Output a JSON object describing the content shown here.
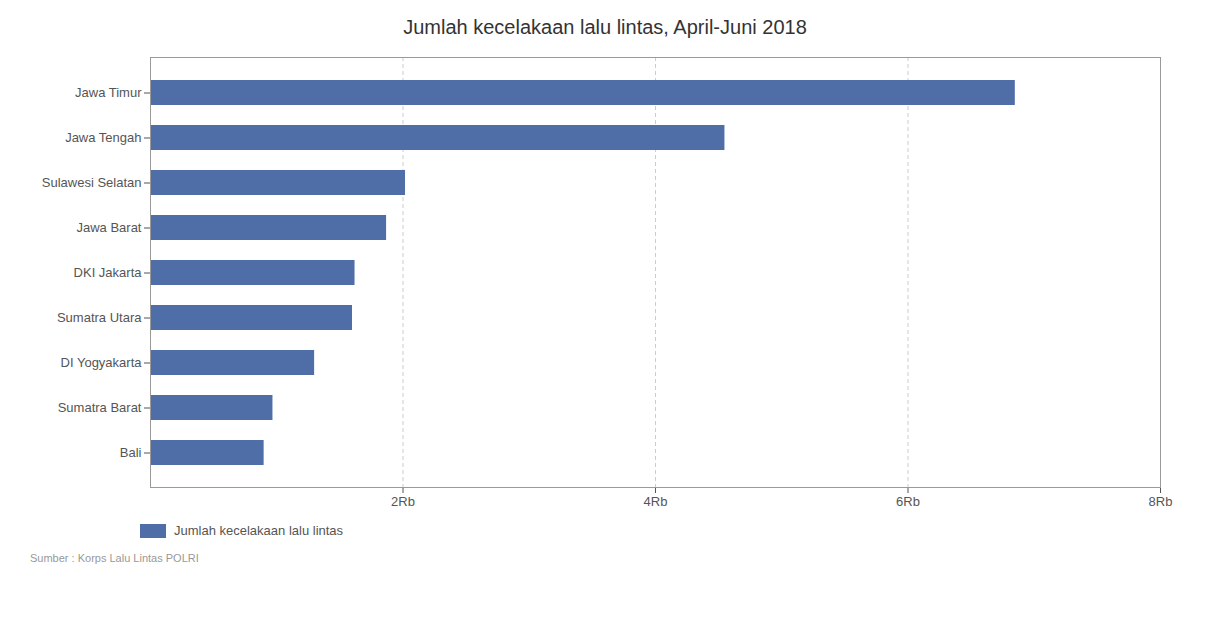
{
  "chart_data": {
    "type": "bar",
    "orientation": "horizontal",
    "title": "Jumlah kecelakaan lalu lintas, April-Juni 2018",
    "categories": [
      "Bali",
      "Sumatra Barat",
      "DI Yogyakarta",
      "Sumatra Utara",
      "DKI Jakarta",
      "Jawa Barat",
      "Sulawesi Selatan",
      "Jawa Tengah",
      "Jawa Timur"
    ],
    "series": [
      {
        "name": "Jumlah kecelakaan lalu lintas",
        "color": "#4f6ea8",
        "values": [
          900,
          970,
          1300,
          1600,
          1620,
          1870,
          2020,
          4550,
          6850
        ]
      }
    ],
    "xlim": [
      0,
      8000
    ],
    "xticks": [
      {
        "value": 2000,
        "label": "2Rb"
      },
      {
        "value": 4000,
        "label": "4Rb"
      },
      {
        "value": 6000,
        "label": "6Rb"
      },
      {
        "value": 8000,
        "label": "8Rb"
      }
    ],
    "grid": true,
    "legend": "lower left",
    "caption": "Sumber : Korps Lalu Lintas POLRI"
  }
}
